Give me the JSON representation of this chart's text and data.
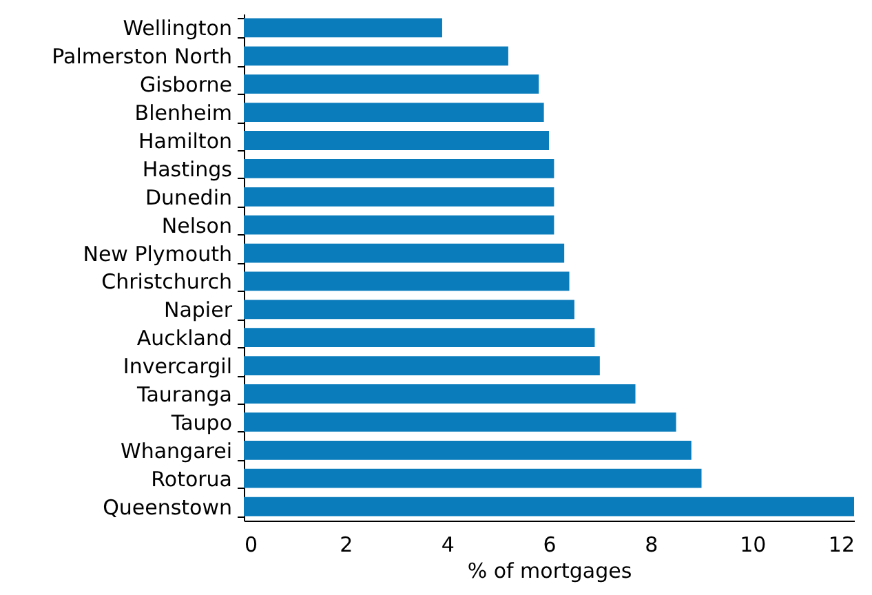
{
  "chart_data": {
    "type": "bar",
    "orientation": "horizontal",
    "xlabel": "% of mortgages",
    "categories": [
      "Wellington",
      "Palmerston North",
      "Gisborne",
      "Blenheim",
      "Hamilton",
      "Hastings",
      "Dunedin",
      "Nelson",
      "New Plymouth",
      "Christchurch",
      "Napier",
      "Auckland",
      "Invercargil",
      "Tauranga",
      "Taupo",
      "Whangarei",
      "Rotorua",
      "Queenstown"
    ],
    "values": [
      3.9,
      5.2,
      5.8,
      5.9,
      6.0,
      6.1,
      6.1,
      6.1,
      6.3,
      6.4,
      6.5,
      6.9,
      7.0,
      7.7,
      8.5,
      8.8,
      9.0,
      12.0
    ],
    "color": "#0a7cbc",
    "xlim": [
      0,
      12
    ],
    "xticks": [
      0,
      2,
      4,
      6,
      8,
      10,
      12
    ],
    "grid": false
  }
}
